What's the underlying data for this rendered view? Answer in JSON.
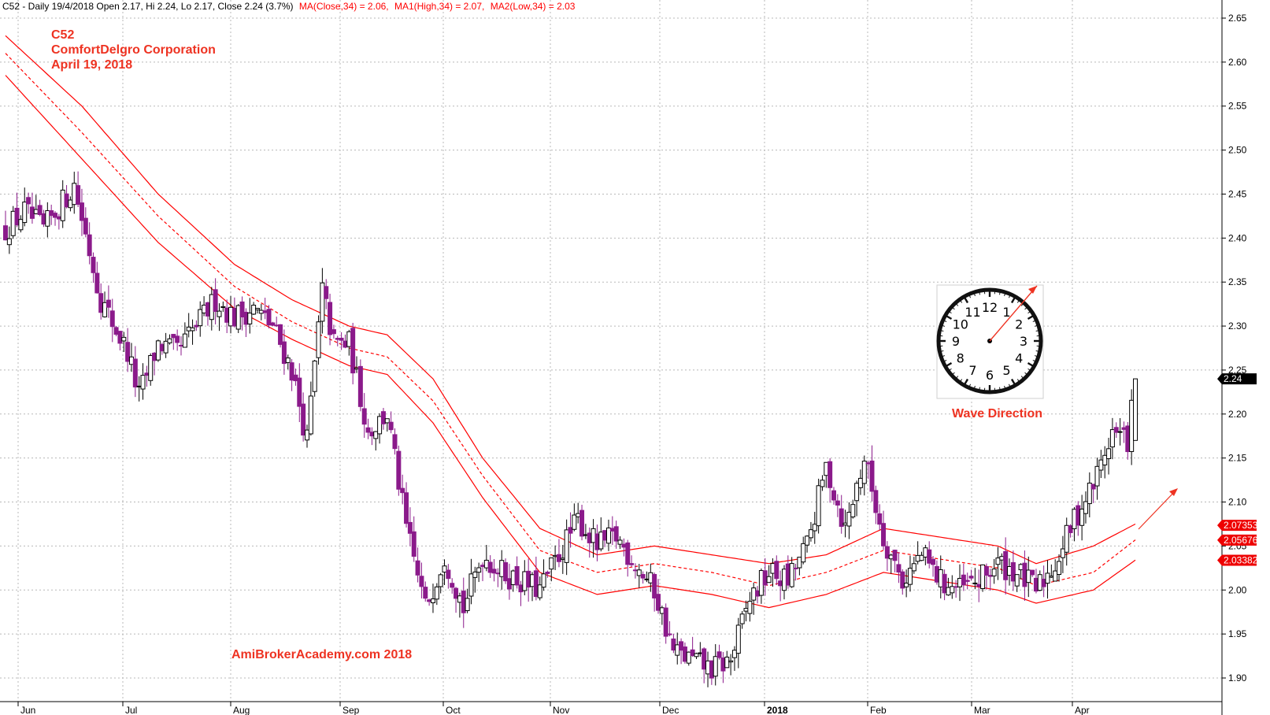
{
  "header": {
    "symbol_info": "C52 - Daily 19/4/2018 Open 2.17, Hi 2.24, Lo 2.17, Close 2.24 (3.7%)",
    "ma_close": "MA(Close,34) = 2.06,",
    "ma_high": "MA1(High,34) = 2.07,",
    "ma_low": "MA2(Low,34) = 2.03"
  },
  "annotations": {
    "ticker": "C52",
    "company": "ComfortDelgro Corporation",
    "date": "April 19, 2018",
    "watermark": "AmiBrokerAcademy.com  2018",
    "wave_label": "Wave Direction"
  },
  "clock": {
    "numbers": [
      "12",
      "1",
      "2",
      "3",
      "4",
      "5",
      "6",
      "7",
      "8",
      "9",
      "10",
      "11"
    ]
  },
  "colors": {
    "candle": "#8b1a8b",
    "ma": "#ff0000",
    "badge": "#ee0000",
    "last_badge": "#000000",
    "grid": "#b8b8b8",
    "label": "#ee3322"
  },
  "chart_data": {
    "type": "candlestick",
    "y_ticks": [
      "1.90",
      "1.95",
      "2.00",
      "2.05",
      "2.10",
      "2.15",
      "2.20",
      "2.25",
      "2.30",
      "2.35",
      "2.40",
      "2.45",
      "2.50",
      "2.55",
      "2.60",
      "2.65"
    ],
    "x_ticks": [
      {
        "label": "Jun",
        "bold": false
      },
      {
        "label": "Jul",
        "bold": false
      },
      {
        "label": "Aug",
        "bold": false
      },
      {
        "label": "Sep",
        "bold": false
      },
      {
        "label": "Oct",
        "bold": false
      },
      {
        "label": "Nov",
        "bold": false
      },
      {
        "label": "Dec",
        "bold": false
      },
      {
        "label": "2018",
        "bold": true
      },
      {
        "label": "Feb",
        "bold": false
      },
      {
        "label": "Mar",
        "bold": false
      },
      {
        "label": "Apr",
        "bold": false
      }
    ],
    "ylim": [
      1.875,
      2.68
    ],
    "last_price": {
      "label": "2.24",
      "value": 2.24
    },
    "ma_badges": [
      {
        "label": "2.07353",
        "value": 2.07353
      },
      {
        "label": "2.05676",
        "value": 2.05676
      },
      {
        "label": "2.03382",
        "value": 2.03382
      }
    ],
    "ma_anchors": {
      "ma_high": [
        [
          0,
          2.63
        ],
        [
          20,
          2.55
        ],
        [
          40,
          2.45
        ],
        [
          60,
          2.37
        ],
        [
          75,
          2.33
        ],
        [
          90,
          2.3
        ],
        [
          100,
          2.29
        ],
        [
          112,
          2.24
        ],
        [
          125,
          2.15
        ],
        [
          140,
          2.07
        ],
        [
          155,
          2.04
        ],
        [
          170,
          2.05
        ],
        [
          185,
          2.04
        ],
        [
          200,
          2.03
        ],
        [
          215,
          2.04
        ],
        [
          230,
          2.07
        ],
        [
          245,
          2.06
        ],
        [
          260,
          2.05
        ],
        [
          270,
          2.03
        ],
        [
          285,
          2.05
        ],
        [
          296,
          2.075
        ]
      ],
      "ma_close": [
        [
          0,
          2.61
        ],
        [
          20,
          2.52
        ],
        [
          40,
          2.425
        ],
        [
          60,
          2.345
        ],
        [
          75,
          2.305
        ],
        [
          90,
          2.275
        ],
        [
          100,
          2.265
        ],
        [
          112,
          2.215
        ],
        [
          125,
          2.13
        ],
        [
          140,
          2.045
        ],
        [
          155,
          2.02
        ],
        [
          170,
          2.03
        ],
        [
          185,
          2.02
        ],
        [
          200,
          2.005
        ],
        [
          215,
          2.02
        ],
        [
          230,
          2.045
        ],
        [
          245,
          2.035
        ],
        [
          260,
          2.025
        ],
        [
          270,
          2.005
        ],
        [
          285,
          2.02
        ],
        [
          296,
          2.057
        ]
      ],
      "ma_low": [
        [
          0,
          2.585
        ],
        [
          20,
          2.49
        ],
        [
          40,
          2.395
        ],
        [
          60,
          2.32
        ],
        [
          75,
          2.285
        ],
        [
          90,
          2.255
        ],
        [
          100,
          2.245
        ],
        [
          112,
          2.19
        ],
        [
          125,
          2.105
        ],
        [
          140,
          2.02
        ],
        [
          155,
          1.995
        ],
        [
          170,
          2.005
        ],
        [
          185,
          1.995
        ],
        [
          200,
          1.98
        ],
        [
          215,
          1.995
        ],
        [
          230,
          2.02
        ],
        [
          245,
          2.01
        ],
        [
          260,
          2.0
        ],
        [
          270,
          1.985
        ],
        [
          285,
          2.0
        ],
        [
          296,
          2.034
        ]
      ]
    },
    "close_anchors": [
      [
        0,
        2.41
      ],
      [
        5,
        2.43
      ],
      [
        10,
        2.41
      ],
      [
        18,
        2.46
      ],
      [
        25,
        2.33
      ],
      [
        32,
        2.27
      ],
      [
        35,
        2.22
      ],
      [
        40,
        2.28
      ],
      [
        45,
        2.27
      ],
      [
        50,
        2.3
      ],
      [
        55,
        2.33
      ],
      [
        60,
        2.31
      ],
      [
        65,
        2.32
      ],
      [
        70,
        2.3
      ],
      [
        75,
        2.25
      ],
      [
        79,
        2.17
      ],
      [
        83,
        2.34
      ],
      [
        86,
        2.28
      ],
      [
        90,
        2.28
      ],
      [
        95,
        2.18
      ],
      [
        100,
        2.2
      ],
      [
        105,
        2.07
      ],
      [
        110,
        1.98
      ],
      [
        115,
        2.04
      ],
      [
        120,
        1.98
      ],
      [
        125,
        2.04
      ],
      [
        130,
        2.02
      ],
      [
        135,
        2.01
      ],
      [
        140,
        2.0
      ],
      [
        145,
        2.04
      ],
      [
        150,
        2.08
      ],
      [
        155,
        2.05
      ],
      [
        160,
        2.06
      ],
      [
        165,
        2.03
      ],
      [
        170,
        2.0
      ],
      [
        175,
        1.93
      ],
      [
        180,
        1.92
      ],
      [
        185,
        1.91
      ],
      [
        190,
        1.92
      ],
      [
        195,
        1.99
      ],
      [
        200,
        2.02
      ],
      [
        205,
        2.01
      ],
      [
        210,
        2.05
      ],
      [
        215,
        2.14
      ],
      [
        220,
        2.07
      ],
      [
        225,
        2.15
      ],
      [
        230,
        2.06
      ],
      [
        235,
        2.01
      ],
      [
        240,
        2.04
      ],
      [
        245,
        2.01
      ],
      [
        250,
        2.0
      ],
      [
        255,
        2.01
      ],
      [
        260,
        2.03
      ],
      [
        265,
        2.02
      ],
      [
        270,
        2.0
      ],
      [
        275,
        2.03
      ],
      [
        280,
        2.08
      ],
      [
        285,
        2.12
      ],
      [
        290,
        2.18
      ],
      [
        294,
        2.17
      ],
      [
        296,
        2.24
      ]
    ],
    "last_candle": {
      "open": 2.17,
      "high": 2.24,
      "low": 2.17,
      "close": 2.24
    },
    "candle_count": 297
  }
}
